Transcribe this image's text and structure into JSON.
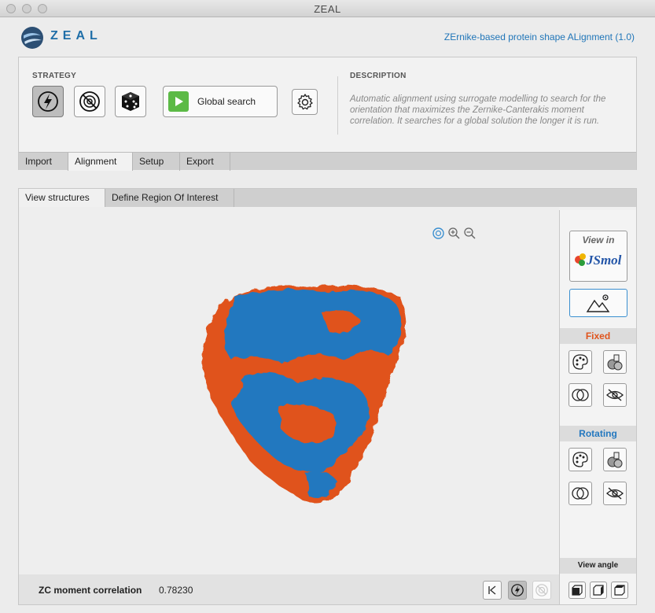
{
  "window": {
    "title": "ZEAL"
  },
  "header": {
    "logo_text": "ZEAL",
    "subtitle": "ZErnike-based protein shape ALignment (1.0)"
  },
  "strategy": {
    "label": "STRATEGY",
    "global_search_label": "Global search",
    "buttons": [
      "lightning-icon",
      "no-target-icon",
      "dice-icon"
    ]
  },
  "description": {
    "label": "DESCRIPTION",
    "text": "Automatic alignment using surrogate modelling to search for the orientation that maximizes the Zernike-Canterakis moment correlation. It searches for a global solution the longer it is run."
  },
  "main_tabs": [
    {
      "label": "Import",
      "active": false
    },
    {
      "label": "Alignment",
      "active": true
    },
    {
      "label": "Setup",
      "active": false
    },
    {
      "label": "Export",
      "active": false
    }
  ],
  "view_tabs": [
    {
      "label": "View structures",
      "active": true
    },
    {
      "label": "Define Region Of Interest",
      "active": false
    }
  ],
  "sidebar": {
    "view_in_label": "View in",
    "jsmol_label": "JSmol",
    "fixed_label": "Fixed",
    "rotating_label": "Rotating",
    "view_angle_label": "View angle"
  },
  "status": {
    "zc_label": "ZC moment correlation",
    "zc_value": "0.78230"
  },
  "colors": {
    "fixed": "#e0531b",
    "rotating": "#2478bf",
    "accent": "#1f75b8",
    "play": "#5cba46"
  }
}
